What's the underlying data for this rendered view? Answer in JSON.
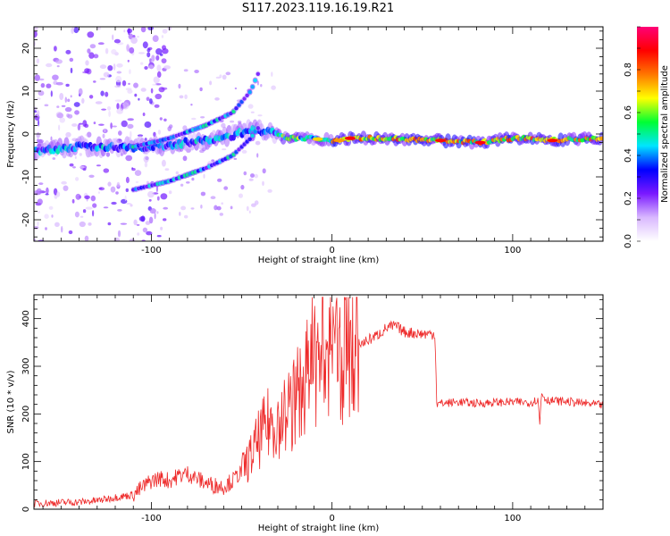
{
  "figure_title": "S117.2023.119.16.19.R21",
  "colors": {
    "snr_line": "#ee2a2a",
    "frame": "#000000"
  },
  "chart_data": [
    {
      "type": "heatmap",
      "title": "",
      "xlabel": "Height of straight line (km)",
      "ylabel": "Frequency (Hz)",
      "xlim": [
        -165,
        150
      ],
      "ylim": [
        -25,
        25
      ],
      "xticks": [
        -100,
        0,
        100
      ],
      "yticks": [
        -20,
        -10,
        0,
        10,
        20
      ],
      "colormap": [
        "#ffffff",
        "#d9b8ff",
        "#7a19ff",
        "#0000ff",
        "#00e5ff",
        "#00ff33",
        "#ffff00",
        "#ff7700",
        "#ff0000",
        "#ff0077"
      ],
      "ridges": [
        {
          "name": "main",
          "points": [
            [
              -165,
              -4
            ],
            [
              -140,
              -3
            ],
            [
              -120,
              -3
            ],
            [
              -100,
              -3
            ],
            [
              -80,
              -2
            ],
            [
              -60,
              -1
            ],
            [
              -45,
              1
            ],
            [
              -35,
              0.5
            ],
            [
              -25,
              -1
            ],
            [
              -10,
              -1
            ],
            [
              0,
              -1.5
            ],
            [
              10,
              -1
            ],
            [
              30,
              -1
            ],
            [
              60,
              -1.5
            ],
            [
              80,
              -2
            ],
            [
              100,
              -1
            ],
            [
              110,
              -1
            ],
            [
              120,
              -1.5
            ],
            [
              150,
              -1
            ]
          ]
        },
        {
          "name": "upper-branch",
          "points": [
            [
              -110,
              -3
            ],
            [
              -90,
              -1
            ],
            [
              -70,
              2
            ],
            [
              -55,
              5
            ],
            [
              -45,
              10
            ],
            [
              -40,
              15
            ]
          ]
        },
        {
          "name": "lower-branch",
          "points": [
            [
              -110,
              -13
            ],
            [
              -90,
              -11
            ],
            [
              -70,
              -8
            ],
            [
              -55,
              -5
            ],
            [
              -45,
              -1
            ],
            [
              -40,
              2
            ]
          ]
        }
      ]
    },
    {
      "type": "colorbar",
      "label": "Normalized spectral amplitude",
      "range": [
        0,
        1
      ],
      "ticks": [
        0.0,
        0.2,
        0.4,
        0.6,
        0.8
      ]
    },
    {
      "type": "line",
      "title": "",
      "xlabel": "Height of straight line (km)",
      "ylabel": "SNR (10 * v/v)",
      "xlim": [
        -165,
        150
      ],
      "ylim": [
        0,
        450
      ],
      "xticks": [
        -100,
        0,
        100
      ],
      "yticks": [
        0,
        100,
        200,
        300,
        400
      ],
      "series": [
        {
          "points": [
            [
              -165,
              12
            ],
            [
              -150,
              14
            ],
            [
              -140,
              15
            ],
            [
              -130,
              18
            ],
            [
              -120,
              25
            ],
            [
              -110,
              30
            ],
            [
              -105,
              45
            ],
            [
              -100,
              60
            ],
            [
              -95,
              65
            ],
            [
              -90,
              60
            ],
            [
              -85,
              70
            ],
            [
              -80,
              75
            ],
            [
              -75,
              65
            ],
            [
              -70,
              55
            ],
            [
              -65,
              50
            ],
            [
              -60,
              48
            ],
            [
              -55,
              60
            ],
            [
              -50,
              80
            ],
            [
              -45,
              110
            ],
            [
              -40,
              150
            ],
            [
              -35,
              180
            ],
            [
              -30,
              190
            ],
            [
              -25,
              200
            ],
            [
              -20,
              230
            ],
            [
              -15,
              270
            ],
            [
              -10,
              300
            ],
            [
              -5,
              320
            ],
            [
              0,
              320
            ],
            [
              5,
              330
            ],
            [
              10,
              340
            ],
            [
              15,
              345
            ],
            [
              20,
              355
            ],
            [
              25,
              365
            ],
            [
              30,
              380
            ],
            [
              35,
              385
            ],
            [
              40,
              372
            ],
            [
              45,
              370
            ],
            [
              50,
              368
            ],
            [
              55,
              368
            ],
            [
              57,
              368
            ],
            [
              58,
              220
            ],
            [
              60,
              222
            ],
            [
              70,
              225
            ],
            [
              80,
              222
            ],
            [
              90,
              224
            ],
            [
              100,
              225
            ],
            [
              110,
              224
            ],
            [
              114,
              230
            ],
            [
              115,
              180
            ],
            [
              116,
              245
            ],
            [
              118,
              232
            ],
            [
              120,
              228
            ],
            [
              130,
              226
            ],
            [
              140,
              222
            ],
            [
              150,
              218
            ]
          ]
        }
      ]
    }
  ]
}
